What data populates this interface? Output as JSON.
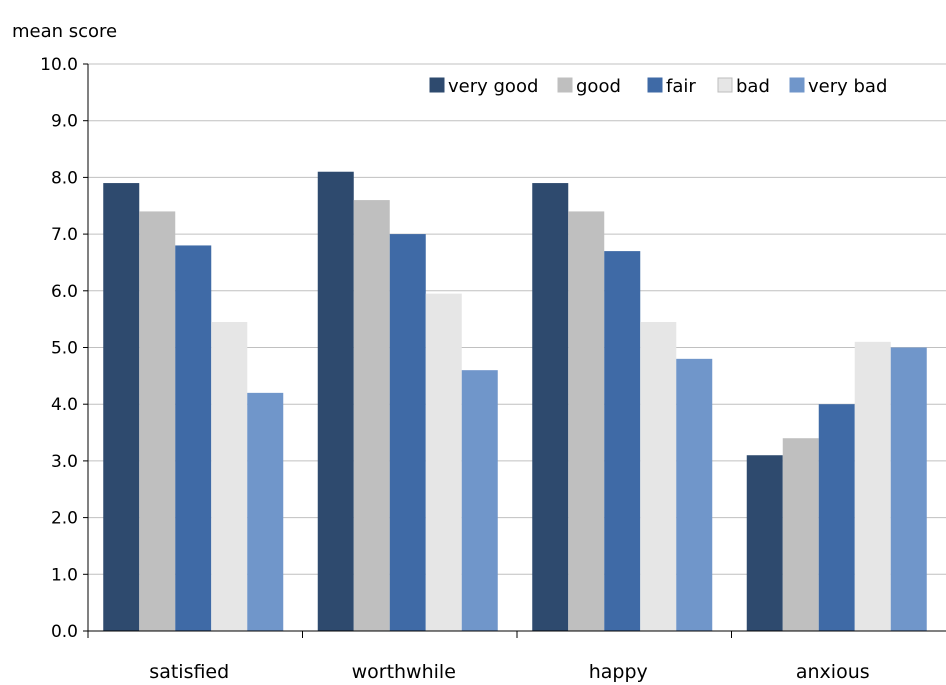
{
  "chart_data": {
    "type": "bar",
    "ylabel": "mean score",
    "xlabel": "",
    "ylim": [
      0,
      10
    ],
    "ytick_step": 1,
    "ytick_labels": [
      "0.0",
      "1.0",
      "2.0",
      "3.0",
      "4.0",
      "5.0",
      "6.0",
      "7.0",
      "8.0",
      "9.0",
      "10.0"
    ],
    "grid": true,
    "legend_position": "top-right",
    "categories": [
      "satisfied",
      "worthwhile",
      "happy",
      "anxious"
    ],
    "series": [
      {
        "name": "very good",
        "color": "#2e4a6e",
        "values": [
          7.9,
          8.1,
          7.9,
          3.1
        ]
      },
      {
        "name": "good",
        "color": "#bfbfbf",
        "values": [
          7.4,
          7.6,
          7.4,
          3.4
        ]
      },
      {
        "name": "fair",
        "color": "#3f6aa6",
        "values": [
          6.8,
          7.0,
          6.7,
          4.0
        ]
      },
      {
        "name": "bad",
        "color": "#e6e6e6",
        "values": [
          5.45,
          5.95,
          5.45,
          5.1
        ]
      },
      {
        "name": "very bad",
        "color": "#7096ca",
        "values": [
          4.2,
          4.6,
          4.8,
          5.0
        ]
      }
    ]
  }
}
